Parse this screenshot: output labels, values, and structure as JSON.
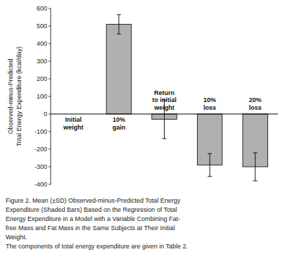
{
  "chart_data": {
    "type": "bar",
    "categories": [
      "Initial\nweight",
      "10%\ngain",
      "Return\nto initial\nweight",
      "10%\nloss",
      "20%\nloss"
    ],
    "values": [
      0,
      510,
      -30,
      -290,
      -300
    ],
    "errors": [
      0,
      55,
      110,
      65,
      80
    ],
    "color": "#b0b0b0",
    "ylim": [
      -400,
      600
    ],
    "yticks": [
      -400,
      -300,
      -200,
      -100,
      0,
      100,
      200,
      300,
      400,
      500,
      600
    ],
    "ylabel": "Observed-minus-Predicted\nTotal Energy Expenditure (kcal/day)",
    "grid": false,
    "annotations": [
      "Figure 2. Mean (±SD) Observed-minus-Predicted Total Energy",
      "Expenditure (Shaded Bars) Based on the Regression of Total",
      "Energy Expenditure in a Model with a Variable Combining Fat-",
      "free Mass and Fat Mass in the Same Subjects at Their Initial",
      "Weight.",
      "The components of total energy expenditure are given in Table 2."
    ]
  }
}
